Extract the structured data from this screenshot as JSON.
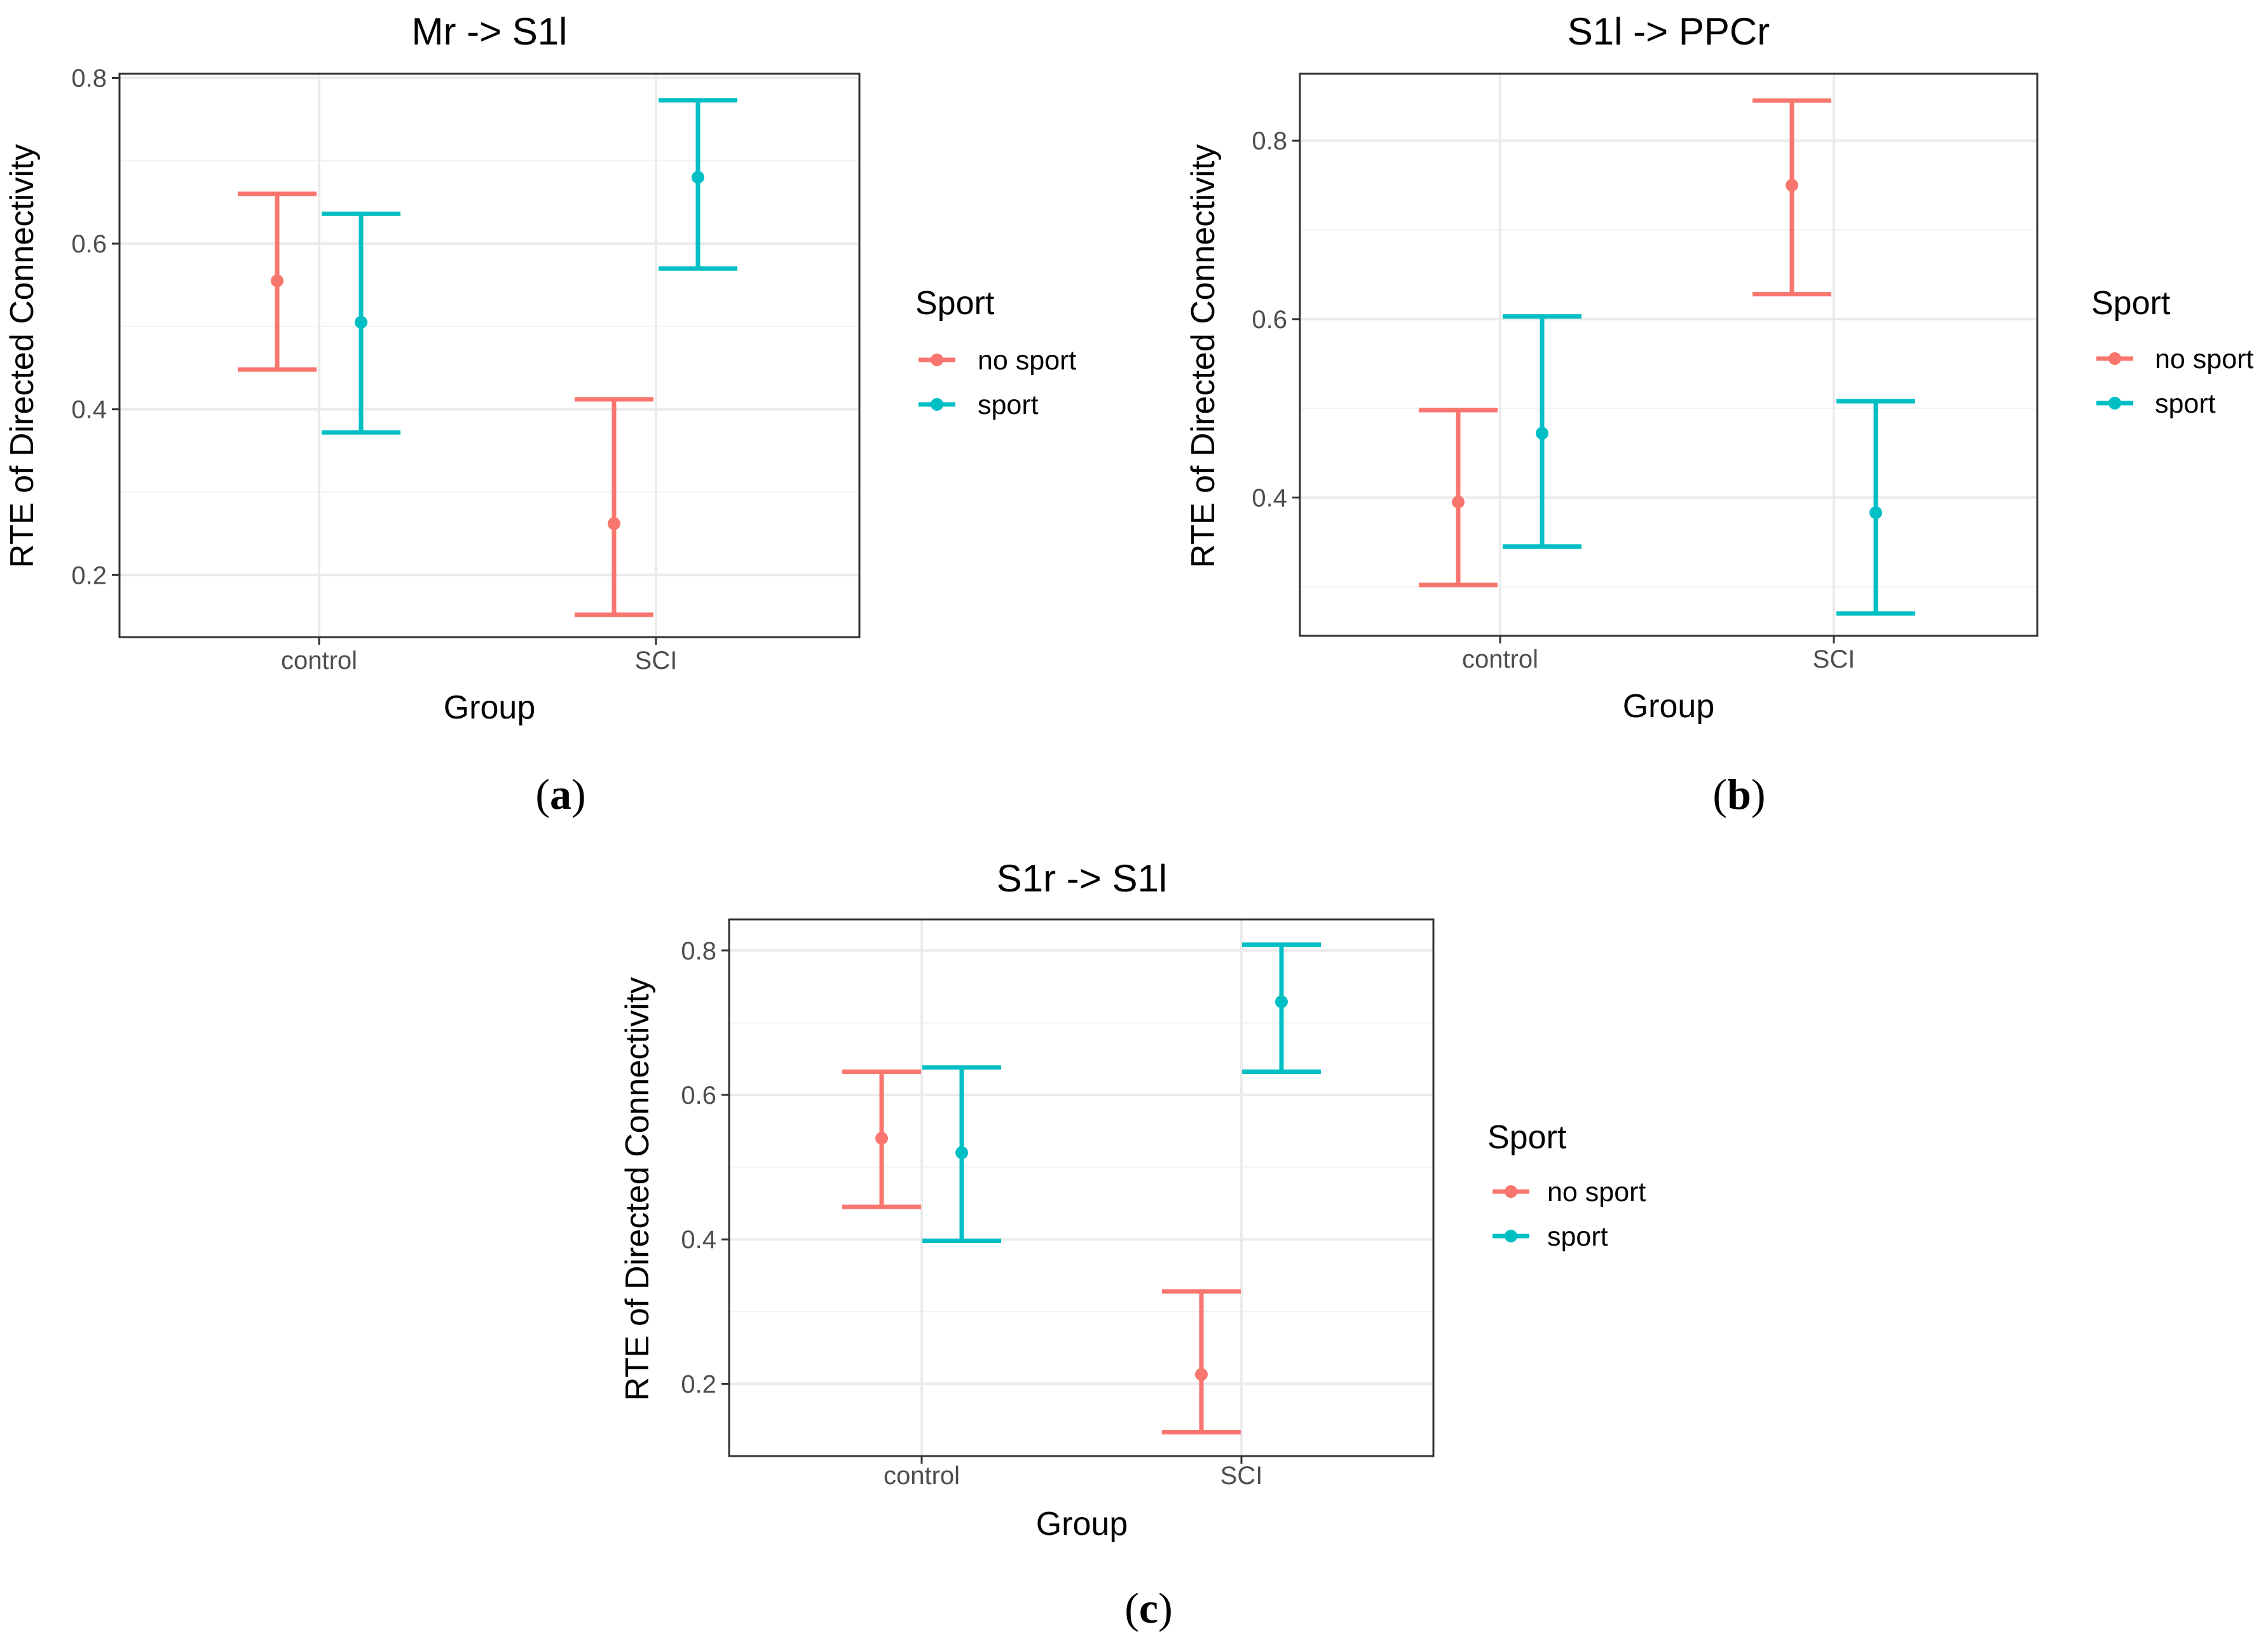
{
  "chart_data": [
    {
      "type": "errorbar",
      "panel_label": "a",
      "title": "Mr -> S1l",
      "xlabel": "Group",
      "ylabel": "RTE of Directed Connectivity",
      "categories": [
        "control",
        "SCI"
      ],
      "ylim": [
        0.125,
        0.805
      ],
      "yticks": [
        0.2,
        0.4,
        0.6,
        0.8
      ],
      "yticklabels": [
        "0.2",
        "0.4",
        "0.6",
        "0.8"
      ],
      "grid": true,
      "legend": {
        "title": "Sport",
        "position": "right"
      },
      "series": [
        {
          "name": "no sport",
          "color": "#F8766D",
          "points": [
            {
              "mean": 0.555,
              "lower": 0.448,
              "upper": 0.66
            },
            {
              "mean": 0.262,
              "lower": 0.152,
              "upper": 0.412
            }
          ]
        },
        {
          "name": "sport",
          "color": "#00BFC4",
          "points": [
            {
              "mean": 0.505,
              "lower": 0.372,
              "upper": 0.636
            },
            {
              "mean": 0.68,
              "lower": 0.57,
              "upper": 0.773
            }
          ]
        }
      ]
    },
    {
      "type": "errorbar",
      "panel_label": "b",
      "title": "S1l -> PPCr",
      "xlabel": "Group",
      "ylabel": "RTE of Directed Connectivity",
      "categories": [
        "control",
        "SCI"
      ],
      "ylim": [
        0.245,
        0.875
      ],
      "yticks": [
        0.4,
        0.6,
        0.8
      ],
      "yticklabels": [
        "0.4",
        "0.6",
        "0.8"
      ],
      "grid": true,
      "legend": {
        "title": "Sport",
        "position": "right"
      },
      "series": [
        {
          "name": "no sport",
          "color": "#F8766D",
          "points": [
            {
              "mean": 0.395,
              "lower": 0.302,
              "upper": 0.498
            },
            {
              "mean": 0.75,
              "lower": 0.628,
              "upper": 0.845
            }
          ]
        },
        {
          "name": "sport",
          "color": "#00BFC4",
          "points": [
            {
              "mean": 0.472,
              "lower": 0.345,
              "upper": 0.603
            },
            {
              "mean": 0.383,
              "lower": 0.27,
              "upper": 0.508
            }
          ]
        }
      ]
    },
    {
      "type": "errorbar",
      "panel_label": "c",
      "title": "S1r -> S1l",
      "xlabel": "Group",
      "ylabel": "RTE of Directed Connectivity",
      "categories": [
        "control",
        "SCI"
      ],
      "ylim": [
        0.1,
        0.843
      ],
      "yticks": [
        0.2,
        0.4,
        0.6,
        0.8
      ],
      "yticklabels": [
        "0.2",
        "0.4",
        "0.6",
        "0.8"
      ],
      "grid": true,
      "legend": {
        "title": "Sport",
        "position": "right"
      },
      "series": [
        {
          "name": "no sport",
          "color": "#F8766D",
          "points": [
            {
              "mean": 0.54,
              "lower": 0.445,
              "upper": 0.632
            },
            {
              "mean": 0.213,
              "lower": 0.133,
              "upper": 0.328
            }
          ]
        },
        {
          "name": "sport",
          "color": "#00BFC4",
          "points": [
            {
              "mean": 0.52,
              "lower": 0.398,
              "upper": 0.638
            },
            {
              "mean": 0.729,
              "lower": 0.632,
              "upper": 0.808
            }
          ]
        }
      ]
    }
  ]
}
